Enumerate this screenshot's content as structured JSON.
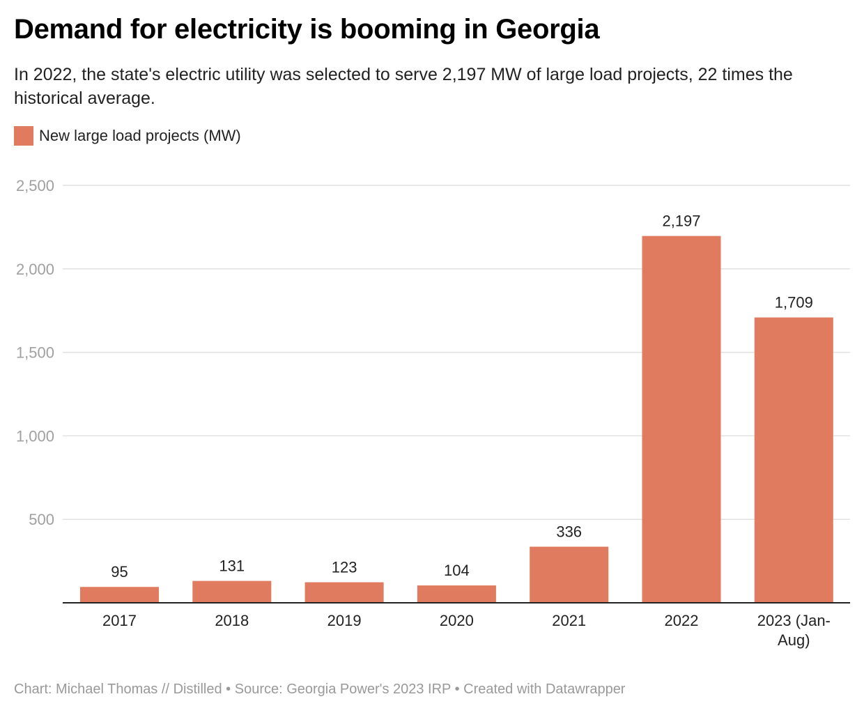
{
  "chart_data": {
    "type": "bar",
    "title": "Demand for electricity is booming in Georgia",
    "subtitle": "In 2022, the state's electric utility was selected to serve 2,197 MW of large load projects, 22 times the historical average.",
    "categories": [
      "2017",
      "2018",
      "2019",
      "2020",
      "2021",
      "2022",
      "2023 (Jan-Aug)"
    ],
    "series": [
      {
        "name": "New large load projects (MW)",
        "values": [
          95,
          131,
          123,
          104,
          336,
          2197,
          1709
        ],
        "color": "#e07b5f"
      }
    ],
    "value_labels": [
      "95",
      "131",
      "123",
      "104",
      "336",
      "2,197",
      "1,709"
    ],
    "ylim": [
      0,
      2500
    ],
    "yticks": [
      500,
      1000,
      1500,
      2000,
      2500
    ],
    "ytick_labels": [
      "500",
      "1,000",
      "1,500",
      "2,000",
      "2,500"
    ],
    "grid": true,
    "legend": "top-left",
    "xlabel": "",
    "ylabel": ""
  },
  "footer": "Chart: Michael Thomas // Distilled • Source: Georgia Power's 2023 IRP • Created with Datawrapper"
}
